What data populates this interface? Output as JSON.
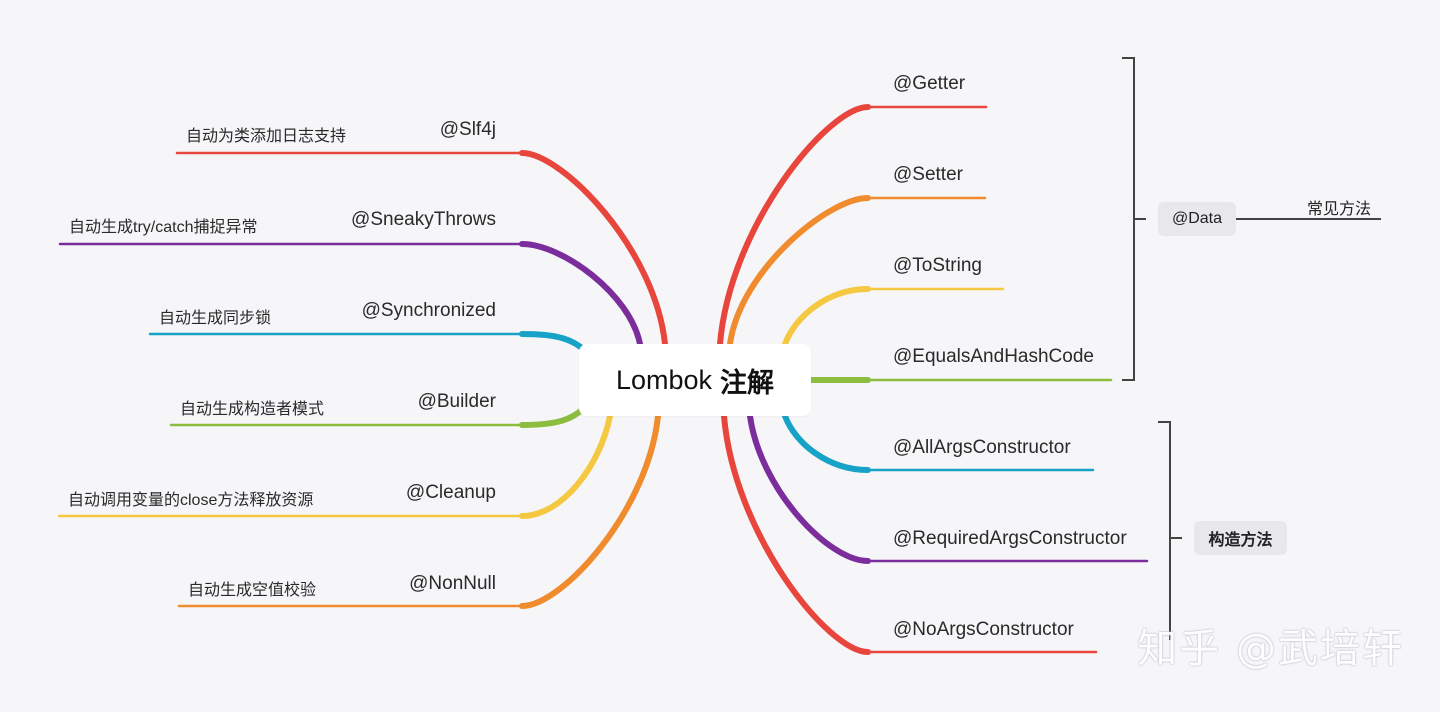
{
  "root": {
    "label": "Lombok",
    "label_strong": "注解"
  },
  "left": [
    {
      "annotation": "@Slf4j",
      "description": "自动为类添加日志支持",
      "color": "#e8453c"
    },
    {
      "annotation": "@SneakyThrows",
      "description": "自动生成try/catch捕捉异常",
      "color": "#7b2d9b"
    },
    {
      "annotation": "@Synchronized",
      "description": "自动生成同步锁",
      "color": "#17a2c8"
    },
    {
      "annotation": "@Builder",
      "description": "自动生成构造者模式",
      "color": "#8cbd3f"
    },
    {
      "annotation": "@Cleanup",
      "description": "自动调用变量的close方法释放资源",
      "color": "#f5c842"
    },
    {
      "annotation": "@NonNull",
      "description": "自动生成空值校验",
      "color": "#f08c2e"
    }
  ],
  "right": [
    {
      "annotation": "@Getter",
      "color": "#e8453c"
    },
    {
      "annotation": "@Setter",
      "color": "#f08c2e"
    },
    {
      "annotation": "@ToString",
      "color": "#f5c842"
    },
    {
      "annotation": "@EqualsAndHashCode",
      "color": "#8cbd3f"
    },
    {
      "annotation": "@AllArgsConstructor",
      "color": "#17a2c8"
    },
    {
      "annotation": "@RequiredArgsConstructor",
      "color": "#7b2d9b"
    },
    {
      "annotation": "@NoArgsConstructor",
      "color": "#e8453c"
    }
  ],
  "groups": {
    "data": {
      "label": "@Data",
      "note": "常见方法"
    },
    "constructor": {
      "label": "构造方法"
    }
  },
  "watermark": "知乎 @武培轩"
}
